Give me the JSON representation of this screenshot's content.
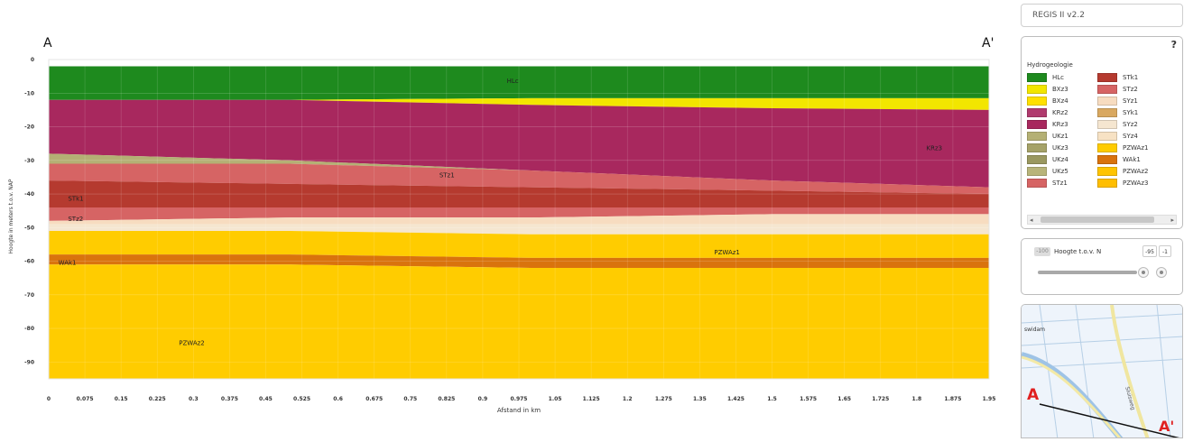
{
  "model_select": {
    "value": "REGIS II v2.2"
  },
  "chart_data": {
    "type": "area",
    "title": "",
    "section_start_label": "A",
    "section_end_label": "A'",
    "xlabel": "Afstand in km",
    "ylabel": "Hoogte in meters t.o.v. NAP",
    "xlim": [
      0,
      1.95
    ],
    "ylim": [
      -95,
      0
    ],
    "x_ticks": [
      "0",
      "0.075",
      "0.15",
      "0.225",
      "0.3",
      "0.375",
      "0.45",
      "0.525",
      "0.6",
      "0.675",
      "0.75",
      "0.825",
      "0.9",
      "0.975",
      "1.05",
      "1.125",
      "1.2",
      "1.275",
      "1.35",
      "1.425",
      "1.5",
      "1.575",
      "1.65",
      "1.725",
      "1.8",
      "1.875",
      "1.95"
    ],
    "y_ticks": [
      0,
      -10,
      -20,
      -30,
      -40,
      -50,
      -60,
      -70,
      -80,
      -90
    ],
    "x": [
      0,
      0.5,
      1.0,
      1.5,
      1.95
    ],
    "layers": [
      {
        "name": "HLc",
        "color": "#1e8a1e",
        "top": [
          -2,
          -2,
          -2,
          -2,
          -2
        ],
        "bottom": [
          -12,
          -12,
          -11.5,
          -11.5,
          -11.5
        ]
      },
      {
        "name": "BXz3",
        "color": "#f2e600",
        "top": [
          -12,
          -12,
          -11.5,
          -11.5,
          -11.5
        ],
        "bottom": [
          -12,
          -12,
          -13.5,
          -14.5,
          -15
        ]
      },
      {
        "name": "KRz3",
        "color": "#a8285e",
        "top": [
          -12,
          -12,
          -13.5,
          -14.5,
          -15
        ],
        "bottom": [
          -28,
          -30,
          -33,
          -36,
          -38
        ]
      },
      {
        "name": "UKz1",
        "color": "#b4b074",
        "top": [
          -28,
          -30,
          -33,
          -36,
          -38
        ],
        "bottom": [
          -31,
          -31,
          -33,
          -36,
          -38
        ]
      },
      {
        "name": "STz1",
        "color": "#d66464",
        "top": [
          -31,
          -31,
          -33,
          -36,
          -38
        ],
        "bottom": [
          -36,
          -37,
          -38,
          -39,
          -40
        ]
      },
      {
        "name": "STk1",
        "color": "#b53a2f",
        "top": [
          -36,
          -37,
          -38,
          -39,
          -40
        ],
        "bottom": [
          -44,
          -44,
          -44,
          -44,
          -44
        ]
      },
      {
        "name": "STz2",
        "color": "#d66464",
        "top": [
          -44,
          -44,
          -44,
          -44,
          -44
        ],
        "bottom": [
          -48,
          -47,
          -47,
          -46,
          -46
        ]
      },
      {
        "name": "SYz1",
        "color": "#f7dcc0",
        "top": [
          -48,
          -47,
          -47,
          -46,
          -46
        ],
        "bottom": [
          -49,
          -49,
          -49,
          -49,
          -49
        ]
      },
      {
        "name": "SYz2",
        "color": "#f5e6d0",
        "top": [
          -49,
          -49,
          -49,
          -49,
          -49
        ],
        "bottom": [
          -51,
          -51,
          -52,
          -52,
          -52
        ]
      },
      {
        "name": "PZWAz1",
        "color": "#ffcc00",
        "top": [
          -51,
          -51,
          -52,
          -52,
          -52
        ],
        "bottom": [
          -58,
          -58,
          -59,
          -59,
          -59
        ]
      },
      {
        "name": "WAk1",
        "color": "#d9730d",
        "top": [
          -58,
          -58,
          -59,
          -59,
          -59
        ],
        "bottom": [
          -61,
          -61,
          -62,
          -62,
          -62
        ]
      },
      {
        "name": "PZWAz2",
        "color": "#ffcc00",
        "top": [
          -61,
          -61,
          -62,
          -62,
          -62
        ],
        "bottom": [
          -95,
          -95,
          -95,
          -95,
          -95
        ]
      }
    ],
    "labels": [
      {
        "text": "HLc",
        "x": 0.95,
        "y": -7
      },
      {
        "text": "KRz3",
        "x": 1.82,
        "y": -27
      },
      {
        "text": "STz1",
        "x": 0.81,
        "y": -35
      },
      {
        "text": "STk1",
        "x": 0.04,
        "y": -42
      },
      {
        "text": "STz2",
        "x": 0.04,
        "y": -48
      },
      {
        "text": "PZWAz1",
        "x": 1.38,
        "y": -58
      },
      {
        "text": "WAk1",
        "x": 0.02,
        "y": -61
      },
      {
        "text": "PZWAz2",
        "x": 0.27,
        "y": -85
      }
    ]
  },
  "legend": {
    "help_label": "?",
    "title": "Hydrogeologie",
    "col1": [
      {
        "label": "HLc",
        "color": "#1e8a1e"
      },
      {
        "label": "BXz3",
        "color": "#f2e600"
      },
      {
        "label": "BXz4",
        "color": "#ffe000"
      },
      {
        "label": "KRz2",
        "color": "#b03a6e"
      },
      {
        "label": "KRz3",
        "color": "#a8285e"
      },
      {
        "label": "UKz1",
        "color": "#b4b074"
      },
      {
        "label": "UKz3",
        "color": "#a5a268"
      },
      {
        "label": "UKz4",
        "color": "#9a9860"
      },
      {
        "label": "UKz5",
        "color": "#b8b47a"
      },
      {
        "label": "STz1",
        "color": "#d66464"
      }
    ],
    "col2": [
      {
        "label": "STk1",
        "color": "#b53a2f"
      },
      {
        "label": "STz2",
        "color": "#d66464"
      },
      {
        "label": "SYz1",
        "color": "#f7dcc0"
      },
      {
        "label": "SYk1",
        "color": "#d9a860"
      },
      {
        "label": "SYz2",
        "color": "#f5e6d0"
      },
      {
        "label": "SYz4",
        "color": "#f7e2c4"
      },
      {
        "label": "PZWAz1",
        "color": "#ffcc00"
      },
      {
        "label": "WAk1",
        "color": "#d9730d"
      },
      {
        "label": "PZWAz2",
        "color": "#ffc400"
      },
      {
        "label": "PZWAz3",
        "color": "#ffbe00"
      }
    ],
    "scroll_left": "◂",
    "scroll_right": "▸"
  },
  "height_control": {
    "toggle_label": "-100",
    "label": "Hoogte t.o.v. N",
    "min_value": "-95",
    "max_value": "-1"
  },
  "map": {
    "place_label": "swidam",
    "road_label": "Sluisweg",
    "label_a": "A",
    "label_a2": "A'"
  }
}
